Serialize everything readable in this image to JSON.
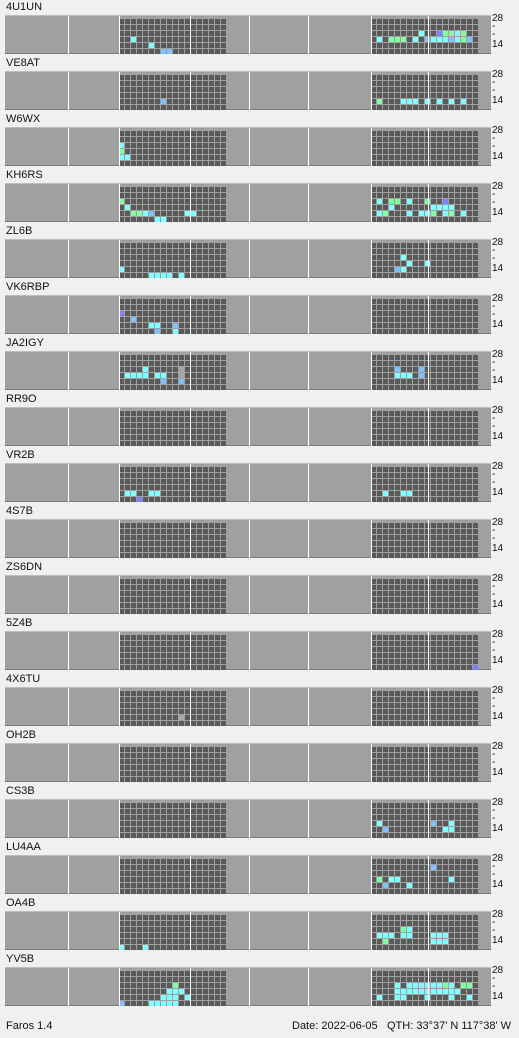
{
  "app_version": "Faros 1.4",
  "status": {
    "date": "Date: 2022-06-05",
    "qth": "QTH:  33°37' N   117°38' W"
  },
  "axis": {
    "top_label": "28",
    "mid_label": "-",
    "bottom_label": "14"
  },
  "colors": {
    "plot_bg": "#a0a0a0",
    "cell_empty": "#5a5a5a",
    "grid_line": "#ffffff",
    "cyan": "#7fffff",
    "green": "#80ffa0",
    "blue": "#80c0ff",
    "violet": "#8080ff",
    "grey": "#a8a8a8"
  },
  "beacons": [
    {
      "callsign": "4U1UN",
      "left": [
        [
          3,
          2,
          "cyan"
        ],
        [
          4,
          5,
          "cyan"
        ],
        [
          5,
          7,
          "blue"
        ],
        [
          5,
          8,
          "blue"
        ]
      ],
      "right": [
        [
          2,
          8,
          "cyan"
        ],
        [
          2,
          11,
          "violet"
        ],
        [
          2,
          12,
          "green"
        ],
        [
          2,
          13,
          "green"
        ],
        [
          2,
          14,
          "cyan"
        ],
        [
          2,
          15,
          "green"
        ],
        [
          3,
          1,
          "cyan"
        ],
        [
          3,
          3,
          "green"
        ],
        [
          3,
          4,
          "green"
        ],
        [
          3,
          5,
          "green"
        ],
        [
          3,
          7,
          "cyan"
        ],
        [
          3,
          9,
          "blue"
        ],
        [
          3,
          10,
          "cyan"
        ],
        [
          3,
          11,
          "cyan"
        ],
        [
          3,
          12,
          "cyan"
        ],
        [
          3,
          13,
          "blue"
        ],
        [
          3,
          14,
          "cyan"
        ],
        [
          3,
          15,
          "green"
        ],
        [
          3,
          16,
          "blue"
        ]
      ]
    },
    {
      "callsign": "VE8AT",
      "left": [
        [
          4,
          7,
          "blue"
        ]
      ],
      "right": [
        [
          4,
          1,
          "green"
        ],
        [
          4,
          5,
          "cyan"
        ],
        [
          4,
          6,
          "cyan"
        ],
        [
          4,
          7,
          "cyan"
        ],
        [
          4,
          9,
          "cyan"
        ],
        [
          4,
          11,
          "cyan"
        ],
        [
          4,
          13,
          "cyan"
        ],
        [
          4,
          15,
          "cyan"
        ]
      ]
    },
    {
      "callsign": "W6WX",
      "left": [
        [
          2,
          0,
          "cyan"
        ],
        [
          3,
          0,
          "green"
        ],
        [
          4,
          0,
          "cyan"
        ],
        [
          4,
          1,
          "cyan"
        ]
      ],
      "right": []
    },
    {
      "callsign": "KH6RS",
      "left": [
        [
          2,
          0,
          "green"
        ],
        [
          3,
          1,
          "cyan"
        ],
        [
          4,
          2,
          "green"
        ],
        [
          4,
          3,
          "green"
        ],
        [
          4,
          4,
          "cyan"
        ],
        [
          4,
          5,
          "blue"
        ],
        [
          5,
          6,
          "cyan"
        ],
        [
          5,
          7,
          "cyan"
        ],
        [
          4,
          11,
          "cyan"
        ],
        [
          4,
          12,
          "cyan"
        ]
      ],
      "right": [
        [
          2,
          1,
          "cyan"
        ],
        [
          2,
          3,
          "green"
        ],
        [
          2,
          4,
          "green"
        ],
        [
          2,
          6,
          "cyan"
        ],
        [
          2,
          9,
          "green"
        ],
        [
          2,
          12,
          "violet"
        ],
        [
          3,
          3,
          "cyan"
        ],
        [
          3,
          10,
          "cyan"
        ],
        [
          3,
          11,
          "cyan"
        ],
        [
          3,
          12,
          "cyan"
        ],
        [
          3,
          13,
          "cyan"
        ],
        [
          4,
          1,
          "cyan"
        ],
        [
          4,
          2,
          "green"
        ],
        [
          4,
          6,
          "cyan"
        ],
        [
          4,
          8,
          "cyan"
        ],
        [
          4,
          9,
          "cyan"
        ],
        [
          4,
          10,
          "green"
        ],
        [
          4,
          12,
          "cyan"
        ],
        [
          4,
          13,
          "green"
        ],
        [
          4,
          15,
          "cyan"
        ]
      ]
    },
    {
      "callsign": "ZL6B",
      "left": [
        [
          4,
          0,
          "cyan"
        ],
        [
          5,
          5,
          "cyan"
        ],
        [
          5,
          6,
          "cyan"
        ],
        [
          5,
          7,
          "cyan"
        ],
        [
          5,
          8,
          "cyan"
        ],
        [
          5,
          10,
          "cyan"
        ]
      ],
      "right": [
        [
          2,
          5,
          "cyan"
        ],
        [
          3,
          6,
          "cyan"
        ],
        [
          4,
          4,
          "blue"
        ],
        [
          4,
          5,
          "cyan"
        ],
        [
          3,
          9,
          "cyan"
        ]
      ]
    },
    {
      "callsign": "VK6RBP",
      "left": [
        [
          2,
          0,
          "violet"
        ],
        [
          3,
          2,
          "blue"
        ],
        [
          4,
          5,
          "cyan"
        ],
        [
          4,
          6,
          "cyan"
        ],
        [
          4,
          9,
          "blue"
        ],
        [
          5,
          6,
          "blue"
        ],
        [
          5,
          9,
          "cyan"
        ]
      ],
      "right": []
    },
    {
      "callsign": "JA2IGY",
      "left": [
        [
          2,
          4,
          "cyan"
        ],
        [
          3,
          1,
          "cyan"
        ],
        [
          3,
          2,
          "cyan"
        ],
        [
          3,
          3,
          "cyan"
        ],
        [
          3,
          4,
          "cyan"
        ],
        [
          3,
          6,
          "cyan"
        ],
        [
          3,
          7,
          "cyan"
        ],
        [
          3,
          10,
          "grey"
        ],
        [
          4,
          7,
          "blue"
        ],
        [
          4,
          10,
          "blue"
        ],
        [
          2,
          10,
          "grey"
        ]
      ],
      "right": [
        [
          2,
          4,
          "blue"
        ],
        [
          3,
          4,
          "cyan"
        ],
        [
          3,
          5,
          "cyan"
        ],
        [
          3,
          6,
          "cyan"
        ],
        [
          3,
          8,
          "blue"
        ],
        [
          2,
          8,
          "blue"
        ]
      ]
    },
    {
      "callsign": "RR9O",
      "left": [],
      "right": []
    },
    {
      "callsign": "VR2B",
      "left": [
        [
          4,
          1,
          "cyan"
        ],
        [
          4,
          2,
          "cyan"
        ],
        [
          5,
          3,
          "violet"
        ],
        [
          4,
          5,
          "cyan"
        ],
        [
          4,
          6,
          "cyan"
        ]
      ],
      "right": [
        [
          4,
          2,
          "cyan"
        ],
        [
          4,
          5,
          "cyan"
        ],
        [
          4,
          6,
          "cyan"
        ]
      ]
    },
    {
      "callsign": "4S7B",
      "left": [],
      "right": []
    },
    {
      "callsign": "ZS6DN",
      "left": [],
      "right": []
    },
    {
      "callsign": "5Z4B",
      "left": [],
      "right": [
        [
          5,
          17,
          "violet"
        ]
      ]
    },
    {
      "callsign": "4X6TU",
      "left": [
        [
          4,
          10,
          "grey"
        ]
      ],
      "right": []
    },
    {
      "callsign": "OH2B",
      "left": [],
      "right": []
    },
    {
      "callsign": "CS3B",
      "left": [],
      "right": [
        [
          3,
          1,
          "cyan"
        ],
        [
          4,
          2,
          "blue"
        ],
        [
          3,
          10,
          "blue"
        ],
        [
          3,
          13,
          "cyan"
        ],
        [
          4,
          13,
          "cyan"
        ],
        [
          4,
          12,
          "cyan"
        ]
      ]
    },
    {
      "callsign": "LU4AA",
      "left": [],
      "right": [
        [
          1,
          10,
          "blue"
        ],
        [
          3,
          1,
          "green"
        ],
        [
          3,
          3,
          "cyan"
        ],
        [
          3,
          4,
          "cyan"
        ],
        [
          4,
          2,
          "blue"
        ],
        [
          4,
          6,
          "cyan"
        ],
        [
          3,
          13,
          "cyan"
        ]
      ]
    },
    {
      "callsign": "OA4B",
      "left": [
        [
          5,
          0,
          "cyan"
        ],
        [
          5,
          4,
          "cyan"
        ]
      ],
      "right": [
        [
          2,
          5,
          "green"
        ],
        [
          2,
          6,
          "cyan"
        ],
        [
          3,
          1,
          "cyan"
        ],
        [
          3,
          2,
          "cyan"
        ],
        [
          3,
          3,
          "cyan"
        ],
        [
          3,
          5,
          "cyan"
        ],
        [
          3,
          6,
          "cyan"
        ],
        [
          4,
          2,
          "green"
        ],
        [
          3,
          10,
          "cyan"
        ],
        [
          3,
          11,
          "cyan"
        ],
        [
          3,
          12,
          "cyan"
        ],
        [
          4,
          10,
          "cyan"
        ],
        [
          4,
          11,
          "cyan"
        ],
        [
          4,
          12,
          "cyan"
        ]
      ]
    },
    {
      "callsign": "YV5B",
      "left": [
        [
          2,
          9,
          "green"
        ],
        [
          3,
          8,
          "cyan"
        ],
        [
          3,
          9,
          "cyan"
        ],
        [
          3,
          10,
          "cyan"
        ],
        [
          4,
          7,
          "cyan"
        ],
        [
          4,
          8,
          "cyan"
        ],
        [
          4,
          9,
          "cyan"
        ],
        [
          4,
          11,
          "cyan"
        ],
        [
          5,
          5,
          "cyan"
        ],
        [
          5,
          6,
          "cyan"
        ],
        [
          5,
          7,
          "cyan"
        ],
        [
          5,
          8,
          "cyan"
        ],
        [
          5,
          9,
          "cyan"
        ],
        [
          5,
          0,
          "blue"
        ]
      ],
      "right": [
        [
          2,
          4,
          "cyan"
        ],
        [
          2,
          15,
          "green"
        ],
        [
          2,
          16,
          "green"
        ],
        [
          3,
          4,
          "cyan"
        ],
        [
          3,
          5,
          "cyan"
        ],
        [
          3,
          6,
          "cyan"
        ],
        [
          3,
          7,
          "cyan"
        ],
        [
          3,
          8,
          "cyan"
        ],
        [
          3,
          9,
          "cyan"
        ],
        [
          3,
          10,
          "cyan"
        ],
        [
          3,
          11,
          "cyan"
        ],
        [
          3,
          12,
          "cyan"
        ],
        [
          3,
          13,
          "cyan"
        ],
        [
          3,
          14,
          "cyan"
        ],
        [
          2,
          6,
          "cyan"
        ],
        [
          2,
          7,
          "cyan"
        ],
        [
          2,
          8,
          "cyan"
        ],
        [
          2,
          9,
          "cyan"
        ],
        [
          2,
          10,
          "cyan"
        ],
        [
          2,
          11,
          "cyan"
        ],
        [
          2,
          12,
          "green"
        ],
        [
          2,
          13,
          "cyan"
        ],
        [
          4,
          1,
          "cyan"
        ],
        [
          4,
          4,
          "cyan"
        ],
        [
          4,
          5,
          "cyan"
        ],
        [
          4,
          9,
          "cyan"
        ],
        [
          4,
          13,
          "cyan"
        ],
        [
          4,
          16,
          "cyan"
        ]
      ]
    }
  ]
}
